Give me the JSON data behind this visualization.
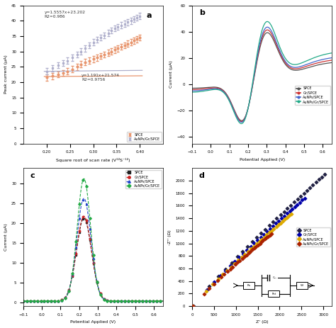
{
  "panel_a": {
    "label": "a",
    "xlabel": "Square root of scan rate (V¹²S⁻¹²)",
    "ylabel": "Peak current (μA)",
    "xlim": [
      0.15,
      0.45
    ],
    "ylim": [
      0,
      45
    ],
    "yticks": [
      0,
      5,
      10,
      15,
      20,
      25,
      30,
      35,
      40,
      45
    ],
    "xticks": [
      0.2,
      0.25,
      0.3,
      0.35,
      0.4
    ],
    "spce_color": "#E8956D",
    "aunps_color": "#B0B0CC",
    "spce_x": [
      0.2,
      0.212,
      0.224,
      0.236,
      0.245,
      0.255,
      0.265,
      0.274,
      0.283,
      0.292,
      0.3,
      0.308,
      0.316,
      0.324,
      0.332,
      0.339,
      0.346,
      0.353,
      0.36,
      0.367,
      0.374,
      0.381,
      0.387,
      0.394,
      0.4
    ],
    "spce_y": [
      21.5,
      22.0,
      22.5,
      23.0,
      23.5,
      24.2,
      25.0,
      25.8,
      26.5,
      27.0,
      27.5,
      28.0,
      28.5,
      29.0,
      29.5,
      30.0,
      30.5,
      31.0,
      31.5,
      32.0,
      32.5,
      33.0,
      33.5,
      34.0,
      34.5
    ],
    "aunps_x": [
      0.2,
      0.212,
      0.224,
      0.236,
      0.245,
      0.255,
      0.265,
      0.274,
      0.283,
      0.292,
      0.3,
      0.308,
      0.316,
      0.324,
      0.332,
      0.339,
      0.346,
      0.353,
      0.36,
      0.367,
      0.374,
      0.381,
      0.387,
      0.394,
      0.4
    ],
    "aunps_y": [
      23.5,
      24.5,
      25.5,
      26.2,
      27.0,
      28.0,
      29.0,
      30.0,
      31.0,
      32.0,
      33.0,
      33.8,
      34.5,
      35.2,
      36.0,
      36.8,
      37.5,
      38.0,
      38.5,
      39.0,
      39.5,
      40.0,
      40.5,
      41.0,
      41.5
    ],
    "eq1": "y=1.5557x+23.202\nR2=0.986",
    "eq2": "y=1.191x+21.574\nR2=0.9756"
  },
  "panel_b": {
    "label": "b",
    "xlabel": "Potential Applied (V)",
    "ylabel": "Current (μA)",
    "xlim": [
      -0.1,
      0.65
    ],
    "ylim": [
      -45,
      60
    ],
    "xticks": [
      -0.1,
      0.0,
      0.1,
      0.2,
      0.3,
      0.4,
      0.5,
      0.6
    ],
    "yticks": [
      -40,
      -20,
      0,
      20,
      40,
      60
    ],
    "spce_color": "#555555",
    "gr_color": "#CC3333",
    "aunps_color": "#4466CC",
    "aunpsgr_color": "#22AA88",
    "legend": [
      "SPCE",
      "Gr/SPCE",
      "AuNPs/SPCE",
      "AuNPs/Gr/SPCE"
    ]
  },
  "panel_c": {
    "label": "c",
    "xlabel": "Potential Applied (V)",
    "ylabel": "Current (μA)",
    "xlim": [
      -0.1,
      0.65
    ],
    "ylim": [
      -1,
      34
    ],
    "xticks": [
      -0.1,
      0.0,
      0.1,
      0.2,
      0.3,
      0.4,
      0.5,
      0.6
    ],
    "yticks": [
      0,
      5,
      10,
      15,
      20,
      25,
      30
    ],
    "spce_color": "#222222",
    "gr_color": "#CC2222",
    "aunps_color": "#2244CC",
    "aunpsgr_color": "#22AA44",
    "legend": [
      "SPCE",
      "Gr/SPCE",
      "AuNPs/SPCE",
      "AuNPs/Gr/SPCE"
    ]
  },
  "panel_d": {
    "label": "d",
    "xlabel": "Z' (Ω)",
    "ylabel": "-Z'' (Ω)",
    "xlim": [
      0,
      3200
    ],
    "ylim": [
      0,
      2200
    ],
    "xticks": [
      0,
      500,
      1000,
      1500,
      2000,
      2500,
      3000
    ],
    "yticks": [
      0,
      200,
      400,
      600,
      800,
      1000,
      1200,
      1400,
      1600,
      1800,
      2000
    ],
    "spce_color": "#222244",
    "gr_color": "#0000AA",
    "aunps_color": "#DDAA00",
    "aunpsgr_color": "#AA2200",
    "legend": [
      "SPCE",
      "Gr/SPCE",
      "AuNPs/SPCE",
      "AuNPs/Gr/SPCE"
    ]
  },
  "background": "#FFFFFF",
  "fig_background": "#FFFFFF"
}
